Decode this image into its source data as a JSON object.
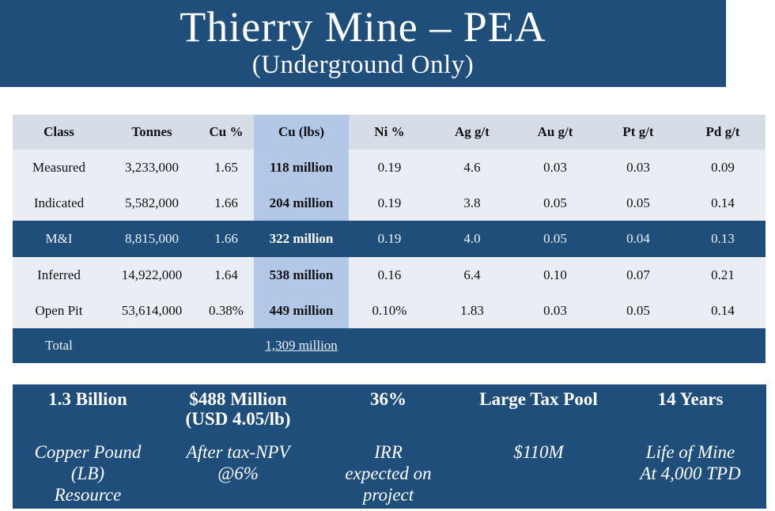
{
  "title": {
    "main": "Thierry Mine – PEA",
    "sub": "(Underground Only)"
  },
  "table": {
    "headers": [
      "Class",
      "Tonnes",
      "Cu %",
      "Cu (lbs)",
      "Ni %",
      "Ag g/t",
      "Au g/t",
      "Pt g/t",
      "Pd g/t"
    ],
    "rows": [
      [
        "Measured",
        "3,233,000",
        "1.65",
        "118 million",
        "0.19",
        "4.6",
        "0.03",
        "0.03",
        "0.09"
      ],
      [
        "Indicated",
        "5,582,000",
        "1.66",
        "204 million",
        "0.19",
        "3.8",
        "0.05",
        "0.05",
        "0.14"
      ],
      [
        "M&I",
        "8,815,000",
        "1.66",
        "322 million",
        "0.19",
        "4.0",
        "0.05",
        "0.04",
        "0.13"
      ],
      [
        "Inferred",
        "14,922,000",
        "1.64",
        "538 million",
        "0.16",
        "6.4",
        "0.10",
        "0.07",
        "0.21"
      ],
      [
        "Open Pit",
        "53,614,000",
        "0.38%",
        "449 million",
        "0.10%",
        "1.83",
        "0.03",
        "0.05",
        "0.14"
      ]
    ],
    "total": {
      "label": "Total",
      "value": "1,309 million"
    }
  },
  "metrics": [
    {
      "head_line1": "1.3 Billion",
      "head_line2": "",
      "desc_line1": "Copper Pound",
      "desc_line2": "(LB)",
      "desc_line3": "Resource"
    },
    {
      "head_line1": "$488 Million",
      "head_line2": "(USD 4.05/lb)",
      "desc_line1": "After tax-NPV",
      "desc_line2": "@6%",
      "desc_line3": ""
    },
    {
      "head_line1": "36%",
      "head_line2": "",
      "desc_line1": "IRR",
      "desc_line2": "expected on",
      "desc_line3": "project"
    },
    {
      "head_line1": "Large Tax Pool",
      "head_line2": "",
      "desc_line1": "$110M",
      "desc_line2": "",
      "desc_line3": ""
    },
    {
      "head_line1": "14 Years",
      "head_line2": "",
      "desc_line1": "Life of Mine",
      "desc_line2": "At 4,000 TPD",
      "desc_line3": ""
    }
  ],
  "colors": {
    "banner": "#1f4e7a",
    "header_row": "#d7dde7",
    "row_bg": "#eaedf3",
    "cu_column": "#b3c7e6"
  }
}
